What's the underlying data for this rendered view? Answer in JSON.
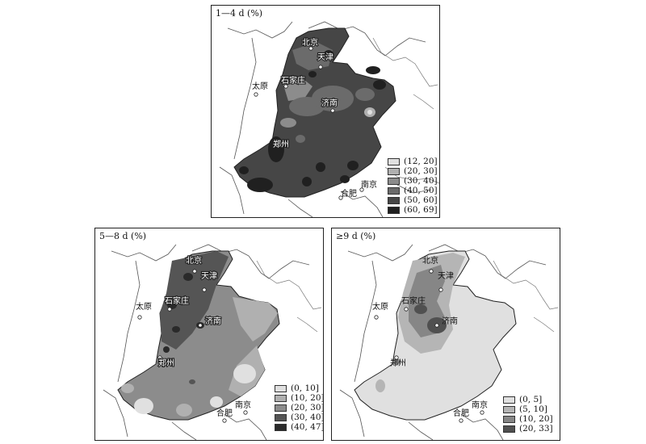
{
  "panels": [
    {
      "title": "1—4 d (%)",
      "legend": [
        {
          "label": "(12, 20]",
          "color": "#e0e0e0"
        },
        {
          "label": "(20, 30]",
          "color": "#b0b0b0"
        },
        {
          "label": "(30, 40]",
          "color": "#8c8c8c"
        },
        {
          "label": "(40, 50]",
          "color": "#6b6b6b"
        },
        {
          "label": "(50, 60]",
          "color": "#464646"
        },
        {
          "label": "(60, 69]",
          "color": "#202020"
        }
      ]
    },
    {
      "title": "5—8 d (%)",
      "legend": [
        {
          "label": "(0, 10]",
          "color": "#e0e0e0"
        },
        {
          "label": "(10, 20]",
          "color": "#b0b0b0"
        },
        {
          "label": "(20, 30]",
          "color": "#8c8c8c"
        },
        {
          "label": "(30, 40]",
          "color": "#555555"
        },
        {
          "label": "(40, 47]",
          "color": "#2a2a2a"
        }
      ]
    },
    {
      "title": "≥9 d (%)",
      "legend": [
        {
          "label": "(0, 5]",
          "color": "#e0e0e0"
        },
        {
          "label": "(5, 10]",
          "color": "#b5b5b5"
        },
        {
          "label": "(10, 20]",
          "color": "#868686"
        },
        {
          "label": "(20, 33]",
          "color": "#505050"
        }
      ]
    }
  ],
  "cities": {
    "beijing": "北京",
    "tianjin": "天津",
    "shijiazhuang": "石家庄",
    "taiyuan": "太原",
    "jinan": "济南",
    "zhengzhou": "郑州",
    "nanjing": "南京",
    "hefei": "合肥"
  }
}
